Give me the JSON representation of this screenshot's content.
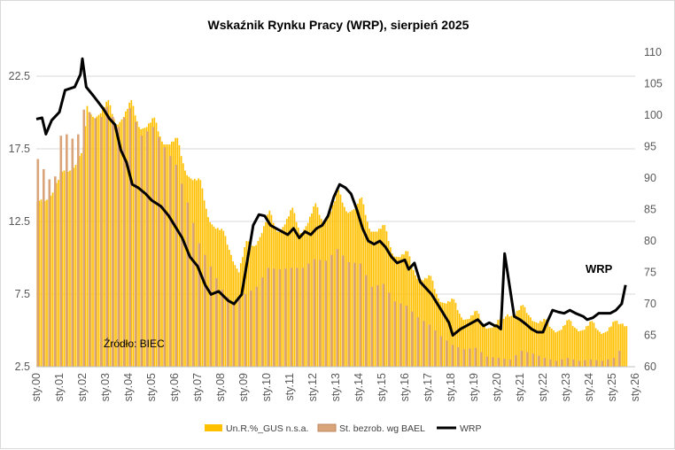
{
  "chart_data": {
    "type": "bar+line",
    "title": "Wskaźnik Rynku Pracy (WRP), sierpień 2025",
    "x_tick_labels": [
      "sty.00",
      "sty.01",
      "sty.02",
      "sty.03",
      "sty.04",
      "sty.05",
      "sty.06",
      "sty.07",
      "sty.08",
      "sty.09",
      "sty.10",
      "sty.11",
      "sty.12",
      "sty.13",
      "sty.14",
      "sty.15",
      "sty.16",
      "sty.17",
      "sty.18",
      "sty.19",
      "sty.20",
      "sty.21",
      "sty.22",
      "sty.23",
      "sty.24",
      "sty.25",
      "sty.26"
    ],
    "x_range": [
      "2000-01",
      "2026-01"
    ],
    "y_left": {
      "ticks": [
        "2.5",
        "7.5",
        "12.5",
        "17.5",
        "22.5"
      ],
      "range": [
        2.5,
        25
      ]
    },
    "y_right": {
      "ticks": [
        "60",
        "65",
        "70",
        "75",
        "80",
        "85",
        "90",
        "95",
        "100",
        "105",
        "110"
      ],
      "range": [
        60,
        112
      ]
    },
    "legend_position": "bottom",
    "annotations": {
      "source": "Źródło: BIEC",
      "series_label": "WRP"
    },
    "colors": {
      "gus": "#ffc000",
      "bael": "#d9a47a",
      "wrp": "#000000",
      "grid": "#d9d9d9"
    },
    "series": [
      {
        "name": "Un.R.%_GUS n.s.a.",
        "type": "bar",
        "frequency": "monthly",
        "start": "2000-01",
        "anchors": [
          [
            "2000-01",
            13.6
          ],
          [
            "2000-06",
            14.0
          ],
          [
            "2001-01",
            15.6
          ],
          [
            "2001-06",
            16.0
          ],
          [
            "2002-01",
            17.4
          ],
          [
            "2002-03",
            20.2
          ],
          [
            "2002-06",
            19.7
          ],
          [
            "2003-02",
            20.6
          ],
          [
            "2003-06",
            19.2
          ],
          [
            "2004-02",
            20.6
          ],
          [
            "2004-06",
            19.0
          ],
          [
            "2005-02",
            19.4
          ],
          [
            "2005-06",
            18.0
          ],
          [
            "2006-02",
            18.0
          ],
          [
            "2006-06",
            16.0
          ],
          [
            "2007-02",
            15.1
          ],
          [
            "2007-06",
            12.8
          ],
          [
            "2008-02",
            11.6
          ],
          [
            "2008-06",
            10.2
          ],
          [
            "2008-10",
            9.2
          ],
          [
            "2009-02",
            10.9
          ],
          [
            "2009-06",
            10.8
          ],
          [
            "2010-02",
            13.0
          ],
          [
            "2010-06",
            11.8
          ],
          [
            "2011-02",
            13.2
          ],
          [
            "2011-06",
            11.7
          ],
          [
            "2012-02",
            13.5
          ],
          [
            "2012-06",
            12.4
          ],
          [
            "2013-02",
            14.4
          ],
          [
            "2013-06",
            13.2
          ],
          [
            "2014-02",
            13.9
          ],
          [
            "2014-06",
            12.0
          ],
          [
            "2015-02",
            12.0
          ],
          [
            "2015-06",
            10.3
          ],
          [
            "2016-02",
            10.2
          ],
          [
            "2016-06",
            8.8
          ],
          [
            "2017-02",
            8.5
          ],
          [
            "2017-06",
            7.2
          ],
          [
            "2018-02",
            6.9
          ],
          [
            "2018-06",
            5.9
          ],
          [
            "2019-02",
            6.1
          ],
          [
            "2019-06",
            5.3
          ],
          [
            "2020-02",
            5.5
          ],
          [
            "2020-06",
            6.1
          ],
          [
            "2021-02",
            6.5
          ],
          [
            "2021-06",
            5.9
          ],
          [
            "2022-02",
            5.5
          ],
          [
            "2022-06",
            5.0
          ],
          [
            "2023-02",
            5.5
          ],
          [
            "2023-06",
            5.1
          ],
          [
            "2024-02",
            5.4
          ],
          [
            "2024-06",
            4.9
          ],
          [
            "2025-02",
            5.4
          ],
          [
            "2025-08",
            5.5
          ]
        ]
      },
      {
        "name": "St. bezrob. wg BAEL",
        "type": "bar",
        "frequency": "quarterly",
        "start": "2000-01",
        "anchors": [
          [
            "2000-01",
            16.8
          ],
          [
            "2000-04",
            16.1
          ],
          [
            "2000-07",
            15.4
          ],
          [
            "2000-10",
            15.6
          ],
          [
            "2001-01",
            18.4
          ],
          [
            "2001-04",
            18.5
          ],
          [
            "2001-07",
            18.2
          ],
          [
            "2001-10",
            18.5
          ],
          [
            "2002-01",
            20.2
          ],
          [
            "2002-04",
            20.0
          ],
          [
            "2002-07",
            19.6
          ],
          [
            "2002-10",
            19.7
          ],
          [
            "2003-01",
            20.4
          ],
          [
            "2003-07",
            19.0
          ],
          [
            "2004-01",
            20.3
          ],
          [
            "2004-07",
            18.4
          ],
          [
            "2005-01",
            19.0
          ],
          [
            "2005-07",
            17.6
          ],
          [
            "2006-01",
            16.4
          ],
          [
            "2006-07",
            13.8
          ],
          [
            "2007-01",
            11.0
          ],
          [
            "2007-07",
            9.4
          ],
          [
            "2008-01",
            7.8
          ],
          [
            "2008-07",
            6.8
          ],
          [
            "2009-01",
            7.5
          ],
          [
            "2009-07",
            8.0
          ],
          [
            "2010-01",
            9.3
          ],
          [
            "2010-07",
            9.2
          ],
          [
            "2011-01",
            9.3
          ],
          [
            "2011-07",
            9.3
          ],
          [
            "2012-01",
            9.9
          ],
          [
            "2012-07",
            9.8
          ],
          [
            "2013-01",
            10.6
          ],
          [
            "2013-07",
            9.7
          ],
          [
            "2014-01",
            9.6
          ],
          [
            "2014-07",
            8.0
          ],
          [
            "2015-01",
            8.2
          ],
          [
            "2015-07",
            7.0
          ],
          [
            "2016-01",
            6.7
          ],
          [
            "2016-07",
            5.9
          ],
          [
            "2017-01",
            5.4
          ],
          [
            "2017-07",
            4.6
          ],
          [
            "2018-01",
            4.0
          ],
          [
            "2018-07",
            3.7
          ],
          [
            "2019-01",
            3.8
          ],
          [
            "2019-07",
            3.2
          ],
          [
            "2020-01",
            3.1
          ],
          [
            "2020-07",
            3.0
          ],
          [
            "2021-01",
            3.6
          ],
          [
            "2021-07",
            3.4
          ],
          [
            "2022-01",
            3.1
          ],
          [
            "2022-07",
            2.9
          ],
          [
            "2023-01",
            3.1
          ],
          [
            "2023-07",
            2.9
          ],
          [
            "2024-01",
            3.0
          ],
          [
            "2024-07",
            2.9
          ],
          [
            "2025-01",
            3.1
          ],
          [
            "2025-04",
            3.6
          ]
        ]
      },
      {
        "name": "WRP",
        "type": "line",
        "axis": "right",
        "points": [
          [
            "2000-01",
            99.4
          ],
          [
            "2000-04",
            99.6
          ],
          [
            "2000-06",
            97.0
          ],
          [
            "2000-09",
            99.2
          ],
          [
            "2001-01",
            100.5
          ],
          [
            "2001-04",
            104.0
          ],
          [
            "2001-09",
            104.5
          ],
          [
            "2001-12",
            106.5
          ],
          [
            "2002-01",
            109.0
          ],
          [
            "2002-03",
            104.5
          ],
          [
            "2002-07",
            103.0
          ],
          [
            "2002-12",
            101.0
          ],
          [
            "2003-03",
            99.5
          ],
          [
            "2003-06",
            98.5
          ],
          [
            "2003-09",
            94.5
          ],
          [
            "2003-12",
            92.5
          ],
          [
            "2004-03",
            89.0
          ],
          [
            "2004-06",
            88.5
          ],
          [
            "2004-10",
            87.5
          ],
          [
            "2005-01",
            86.5
          ],
          [
            "2005-06",
            85.5
          ],
          [
            "2005-10",
            84.0
          ],
          [
            "2006-01",
            82.5
          ],
          [
            "2006-05",
            80.5
          ],
          [
            "2006-09",
            77.5
          ],
          [
            "2007-01",
            76.0
          ],
          [
            "2007-05",
            73.0
          ],
          [
            "2007-08",
            71.5
          ],
          [
            "2007-12",
            72.0
          ],
          [
            "2008-05",
            70.5
          ],
          [
            "2008-08",
            70.0
          ],
          [
            "2008-12",
            71.5
          ],
          [
            "2009-03",
            77.0
          ],
          [
            "2009-06",
            82.5
          ],
          [
            "2009-09",
            84.2
          ],
          [
            "2009-12",
            84.0
          ],
          [
            "2010-03",
            82.5
          ],
          [
            "2010-06",
            82.0
          ],
          [
            "2010-12",
            81.0
          ],
          [
            "2011-03",
            82.0
          ],
          [
            "2011-06",
            80.5
          ],
          [
            "2011-09",
            81.5
          ],
          [
            "2011-12",
            81.0
          ],
          [
            "2012-03",
            82.0
          ],
          [
            "2012-06",
            82.5
          ],
          [
            "2012-09",
            84.0
          ],
          [
            "2012-12",
            87.0
          ],
          [
            "2013-03",
            89.0
          ],
          [
            "2013-06",
            88.5
          ],
          [
            "2013-09",
            87.5
          ],
          [
            "2013-12",
            85.0
          ],
          [
            "2014-03",
            82.0
          ],
          [
            "2014-06",
            80.0
          ],
          [
            "2014-09",
            79.5
          ],
          [
            "2014-12",
            80.0
          ],
          [
            "2015-03",
            79.0
          ],
          [
            "2015-06",
            77.5
          ],
          [
            "2015-09",
            76.5
          ],
          [
            "2016-01",
            77.0
          ],
          [
            "2016-03",
            75.5
          ],
          [
            "2016-06",
            76.5
          ],
          [
            "2016-09",
            73.5
          ],
          [
            "2016-12",
            72.5
          ],
          [
            "2017-03",
            71.5
          ],
          [
            "2017-06",
            70.0
          ],
          [
            "2017-09",
            68.5
          ],
          [
            "2017-12",
            67.0
          ],
          [
            "2018-02",
            65.0
          ],
          [
            "2018-06",
            66.0
          ],
          [
            "2018-09",
            66.5
          ],
          [
            "2018-12",
            67.0
          ],
          [
            "2019-03",
            67.5
          ],
          [
            "2019-06",
            66.5
          ],
          [
            "2019-09",
            67.0
          ],
          [
            "2019-12",
            66.5
          ],
          [
            "2020-01",
            66.5
          ],
          [
            "2020-03",
            66.0
          ],
          [
            "2020-05",
            78.0
          ],
          [
            "2020-08",
            72.0
          ],
          [
            "2020-10",
            68.0
          ],
          [
            "2021-01",
            67.5
          ],
          [
            "2021-04",
            66.8
          ],
          [
            "2021-07",
            66.0
          ],
          [
            "2021-10",
            65.5
          ],
          [
            "2022-01",
            65.5
          ],
          [
            "2022-03",
            67.0
          ],
          [
            "2022-06",
            69.0
          ],
          [
            "2022-09",
            68.7
          ],
          [
            "2022-12",
            68.5
          ],
          [
            "2023-03",
            69.0
          ],
          [
            "2023-06",
            68.5
          ],
          [
            "2023-10",
            68.0
          ],
          [
            "2023-12",
            67.5
          ],
          [
            "2024-03",
            67.8
          ],
          [
            "2024-06",
            68.5
          ],
          [
            "2024-09",
            68.5
          ],
          [
            "2024-12",
            68.5
          ],
          [
            "2025-03",
            69.0
          ],
          [
            "2025-06",
            70.0
          ],
          [
            "2025-08",
            73.0
          ]
        ]
      }
    ]
  }
}
